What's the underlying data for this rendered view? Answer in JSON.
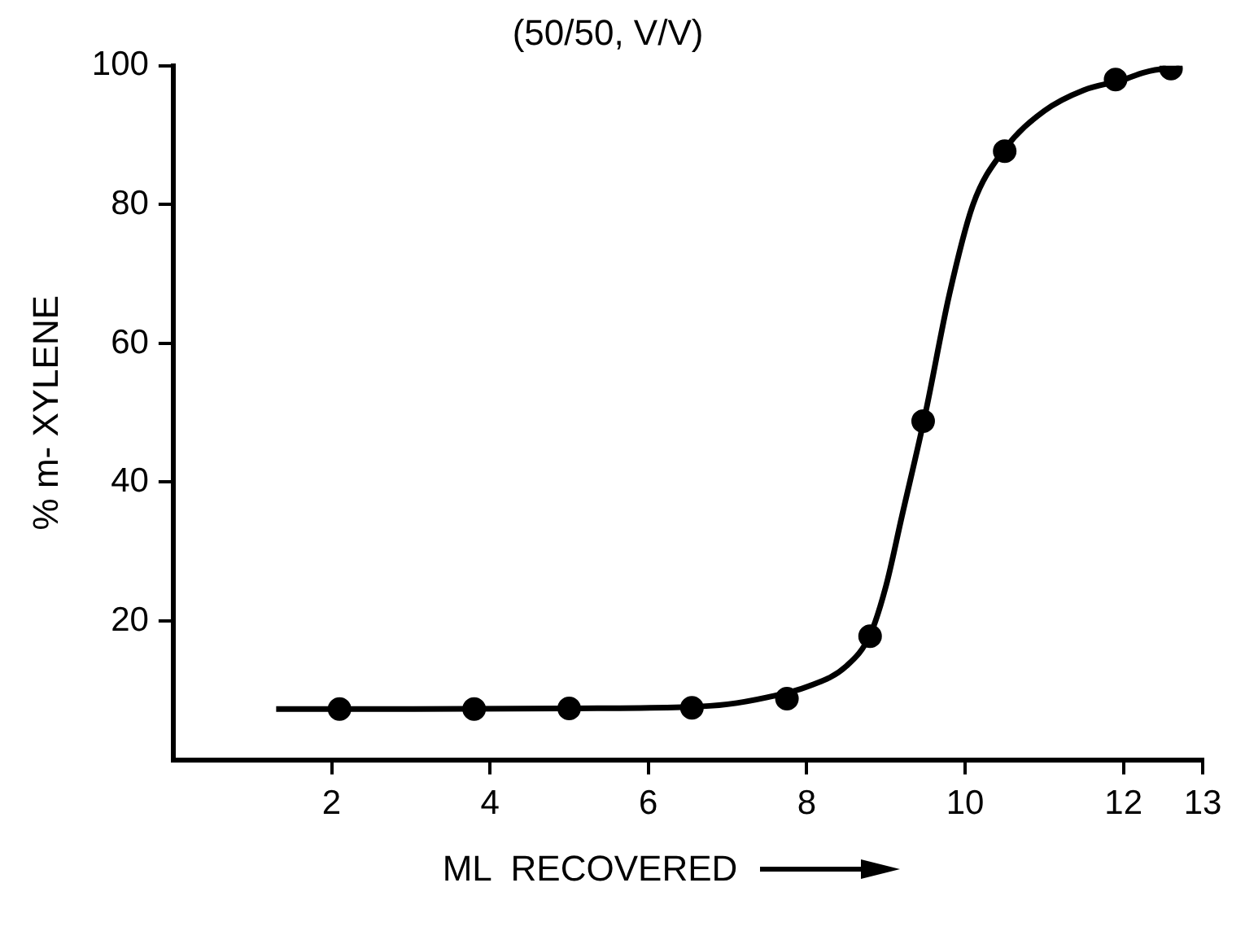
{
  "chart_data": {
    "type": "scatter",
    "title": "(50/50, V/V)",
    "xlabel": "ML  RECOVERED",
    "ylabel": "% m- XYLENE",
    "xlim": [
      0,
      13
    ],
    "xticks": [
      2,
      4,
      6,
      8,
      10,
      12,
      13
    ],
    "ylim": [
      0,
      100
    ],
    "yticks": [
      20,
      40,
      60,
      80,
      100
    ],
    "grid": false,
    "legend": false,
    "series": [
      {
        "type": "line",
        "color": "#000000",
        "marker": "none",
        "line_style": "solid",
        "x": [
          1.3,
          3,
          5,
          6.5,
          7,
          7.5,
          8,
          8.5,
          8.8,
          9,
          9.2,
          9.5,
          9.8,
          10.1,
          10.5,
          11,
          11.5,
          12,
          12.25,
          12.5,
          12.73
        ],
        "values": [
          7.3,
          7.3,
          7.4,
          7.6,
          8,
          9,
          10.5,
          13.5,
          18,
          25,
          35,
          50,
          67,
          80,
          88,
          93.5,
          96.5,
          98,
          99,
          99.5,
          99.5
        ]
      },
      {
        "color": "#000000",
        "marker": "circle",
        "x": [
          2.1,
          3.8,
          5.0,
          6.55,
          7.75,
          8.8,
          9.47,
          10.5,
          11.9,
          12.6
        ],
        "values": [
          7.3,
          7.3,
          7.4,
          7.5,
          8.8,
          17.8,
          48.8,
          87.7,
          98,
          99.6
        ]
      }
    ]
  }
}
